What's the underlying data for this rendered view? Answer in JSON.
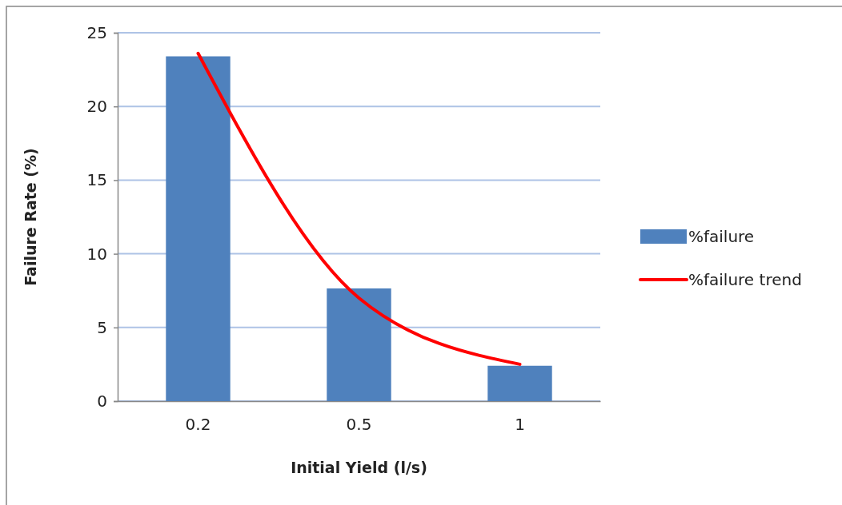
{
  "chart_data": {
    "type": "bar",
    "xlabel": "Initial Yield (l/s)",
    "ylabel": "Failure Rate (%)",
    "categories": [
      "0.2",
      "0.5",
      "1"
    ],
    "series": [
      {
        "name": "%failure",
        "color": "#4f81bd",
        "values": [
          23.4,
          7.65,
          2.4
        ]
      },
      {
        "name": "%failure trend",
        "type": "line",
        "color": "#ff0000",
        "values": [
          23.6,
          7.0,
          2.5
        ]
      }
    ],
    "ylim": [
      0,
      25
    ],
    "yticks": [
      0,
      5,
      10,
      15,
      20,
      25
    ],
    "grid": "y",
    "legend": "right"
  }
}
